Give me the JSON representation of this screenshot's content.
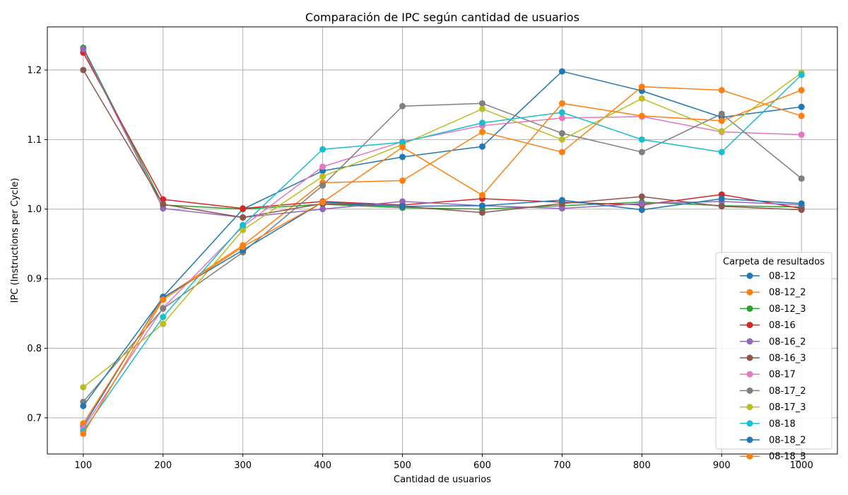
{
  "chart_data": {
    "type": "line",
    "title": "Comparación de IPC según cantidad de usuarios",
    "xlabel": "Cantidad de usuarios",
    "ylabel": "IPC (Instructions per Cycle)",
    "x": [
      100,
      200,
      300,
      400,
      500,
      600,
      700,
      800,
      900,
      1000
    ],
    "xlim": [
      55,
      1045
    ],
    "ylim": [
      0.648,
      1.262
    ],
    "xticks": [
      "100",
      "200",
      "300",
      "400",
      "500",
      "600",
      "700",
      "800",
      "900",
      "1000"
    ],
    "yticks": [
      "0.7",
      "0.8",
      "0.9",
      "1.0",
      "1.1",
      "1.2"
    ],
    "grid": true,
    "legend_title": "Carpeta de resultados",
    "legend_position": "lower-right",
    "series": [
      {
        "name": "08-12",
        "color": "#1f77b4",
        "values": [
          0.688,
          0.874,
          1.0,
          1.055,
          1.075,
          1.09,
          1.198,
          1.17,
          1.132,
          1.147
        ]
      },
      {
        "name": "08-12_2",
        "color": "#ff7f0e",
        "values": [
          0.692,
          0.872,
          0.948,
          1.038,
          1.041,
          1.111,
          1.082,
          1.176,
          1.171,
          1.134
        ]
      },
      {
        "name": "08-12_3",
        "color": "#2ca02c",
        "values": [
          1.232,
          1.006,
          1.0,
          1.007,
          1.002,
          1.0,
          1.005,
          1.01,
          1.005,
          1.003
        ]
      },
      {
        "name": "08-16",
        "color": "#d62728",
        "values": [
          1.225,
          1.014,
          1.001,
          1.011,
          1.006,
          1.015,
          1.01,
          1.006,
          1.021,
          1.001
        ]
      },
      {
        "name": "08-16_2",
        "color": "#9467bd",
        "values": [
          1.23,
          1.001,
          0.988,
          1.0,
          1.011,
          1.005,
          1.001,
          1.008,
          1.011,
          1.006
        ]
      },
      {
        "name": "08-16_3",
        "color": "#8c564b",
        "values": [
          1.2,
          1.007,
          0.988,
          1.008,
          1.004,
          0.995,
          1.008,
          1.018,
          1.004,
          0.999
        ]
      },
      {
        "name": "08-17",
        "color": "#e377c2",
        "values": [
          0.685,
          0.858,
          0.975,
          1.061,
          1.097,
          1.12,
          1.131,
          1.133,
          1.111,
          1.107
        ]
      },
      {
        "name": "08-17_2",
        "color": "#7f7f7f",
        "values": [
          0.723,
          0.857,
          0.938,
          1.034,
          1.148,
          1.152,
          1.109,
          1.082,
          1.137,
          1.044
        ]
      },
      {
        "name": "08-17_3",
        "color": "#bcbd22",
        "values": [
          0.744,
          0.835,
          0.97,
          1.047,
          1.093,
          1.144,
          1.1,
          1.159,
          1.112,
          1.196
        ]
      },
      {
        "name": "08-18",
        "color": "#17becf",
        "values": [
          0.681,
          0.845,
          0.977,
          1.086,
          1.096,
          1.124,
          1.139,
          1.1,
          1.082,
          1.193
        ]
      },
      {
        "name": "08-18_2",
        "color": "#1f77b4",
        "values": [
          0.717,
          0.873,
          0.941,
          1.01,
          1.004,
          1.005,
          1.013,
          0.999,
          1.015,
          1.008
        ]
      },
      {
        "name": "08-18_3",
        "color": "#ff7f0e",
        "values": [
          0.677,
          0.87,
          0.946,
          1.01,
          1.089,
          1.02,
          1.152,
          1.134,
          1.127,
          1.171
        ]
      }
    ]
  }
}
